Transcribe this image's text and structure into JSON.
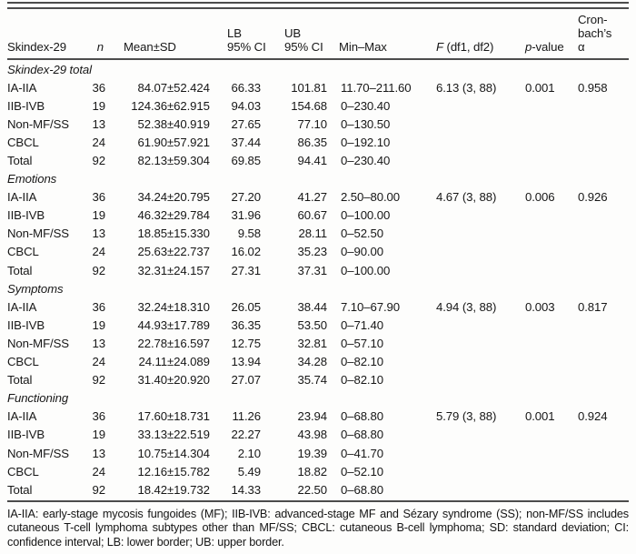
{
  "table": {
    "header": {
      "skindex": "Skindex-29",
      "n": "n",
      "mean_sd": "Mean±SD",
      "lb": "LB\n95% CI",
      "ub": "UB\n95% CI",
      "min_max": "Min–Max",
      "f_italic": "F",
      "f_rest": " (df1, df2)",
      "p_italic": "p",
      "p_rest": "-value",
      "cronbach": "Cron-\nbach’s\nα"
    },
    "sections": [
      {
        "title": "Skindex-29 total",
        "rows": [
          {
            "label": "IA-IIA",
            "n": "36",
            "mean_sd": "84.07±52.424",
            "lb": "66.33",
            "ub": "101.81",
            "min_max": "11.70–211.60",
            "f": "6.13 (3, 88)",
            "p": "0.001",
            "alpha": "0.958"
          },
          {
            "label": "IIB-IVB",
            "n": "19",
            "mean_sd": "124.36±62.915",
            "lb": "94.03",
            "ub": "154.68",
            "min_max": "0–230.40",
            "f": "",
            "p": "",
            "alpha": ""
          },
          {
            "label": "Non-MF/SS",
            "n": "13",
            "mean_sd": "52.38±40.919",
            "lb": "27.65",
            "ub": "77.10",
            "min_max": "0–130.50",
            "f": "",
            "p": "",
            "alpha": ""
          },
          {
            "label": "CBCL",
            "n": "24",
            "mean_sd": "61.90±57.921",
            "lb": "37.44",
            "ub": "86.35",
            "min_max": "0–192.10",
            "f": "",
            "p": "",
            "alpha": ""
          },
          {
            "label": "Total",
            "n": "92",
            "mean_sd": "82.13±59.304",
            "lb": "69.85",
            "ub": "94.41",
            "min_max": "0–230.40",
            "f": "",
            "p": "",
            "alpha": ""
          }
        ]
      },
      {
        "title": "Emotions",
        "rows": [
          {
            "label": "IA-IIA",
            "n": "36",
            "mean_sd": "34.24±20.795",
            "lb": "27.20",
            "ub": "41.27",
            "min_max": "2.50–80.00",
            "f": "4.67 (3, 88)",
            "p": "0.006",
            "alpha": "0.926"
          },
          {
            "label": "IIB-IVB",
            "n": "19",
            "mean_sd": "46.32±29.784",
            "lb": "31.96",
            "ub": "60.67",
            "min_max": "0–100.00",
            "f": "",
            "p": "",
            "alpha": ""
          },
          {
            "label": "Non-MF/SS",
            "n": "13",
            "mean_sd": "18.85±15.330",
            "lb": "9.58",
            "ub": "28.11",
            "min_max": "0–52.50",
            "f": "",
            "p": "",
            "alpha": ""
          },
          {
            "label": "CBCL",
            "n": "24",
            "mean_sd": "25.63±22.737",
            "lb": "16.02",
            "ub": "35.23",
            "min_max": "0–90.00",
            "f": "",
            "p": "",
            "alpha": ""
          },
          {
            "label": "Total",
            "n": "92",
            "mean_sd": "32.31±24.157",
            "lb": "27.31",
            "ub": "37.31",
            "min_max": "0–100.00",
            "f": "",
            "p": "",
            "alpha": ""
          }
        ]
      },
      {
        "title": "Symptoms",
        "rows": [
          {
            "label": "IA-IIA",
            "n": "36",
            "mean_sd": "32.24±18.310",
            "lb": "26.05",
            "ub": "38.44",
            "min_max": "7.10–67.90",
            "f": "4.94 (3, 88)",
            "p": "0.003",
            "alpha": "0.817"
          },
          {
            "label": "IIB-IVB",
            "n": "19",
            "mean_sd": "44.93±17.789",
            "lb": "36.35",
            "ub": "53.50",
            "min_max": "0–71.40",
            "f": "",
            "p": "",
            "alpha": ""
          },
          {
            "label": "Non-MF/SS",
            "n": "13",
            "mean_sd": "22.78±16.597",
            "lb": "12.75",
            "ub": "32.81",
            "min_max": "0–57.10",
            "f": "",
            "p": "",
            "alpha": ""
          },
          {
            "label": "CBCL",
            "n": "24",
            "mean_sd": "24.11±24.089",
            "lb": "13.94",
            "ub": "34.28",
            "min_max": "0–82.10",
            "f": "",
            "p": "",
            "alpha": ""
          },
          {
            "label": "Total",
            "n": "92",
            "mean_sd": "31.40±20.920",
            "lb": "27.07",
            "ub": "35.74",
            "min_max": "0–82.10",
            "f": "",
            "p": "",
            "alpha": ""
          }
        ]
      },
      {
        "title": "Functioning",
        "rows": [
          {
            "label": "IA-IIA",
            "n": "36",
            "mean_sd": "17.60±18.731",
            "lb": "11.26",
            "ub": "23.94",
            "min_max": "0–68.80",
            "f": "5.79 (3, 88)",
            "p": "0.001",
            "alpha": "0.924"
          },
          {
            "label": "IIB-IVB",
            "n": "19",
            "mean_sd": "33.13±22.519",
            "lb": "22.27",
            "ub": "43.98",
            "min_max": "0–68.80",
            "f": "",
            "p": "",
            "alpha": ""
          },
          {
            "label": "Non-MF/SS",
            "n": "13",
            "mean_sd": "10.75±14.304",
            "lb": "2.10",
            "ub": "19.39",
            "min_max": "0–41.70",
            "f": "",
            "p": "",
            "alpha": ""
          },
          {
            "label": "CBCL",
            "n": "24",
            "mean_sd": "12.16±15.782",
            "lb": "5.49",
            "ub": "18.82",
            "min_max": "0–52.10",
            "f": "",
            "p": "",
            "alpha": ""
          },
          {
            "label": "Total",
            "n": "92",
            "mean_sd": "18.42±19.732",
            "lb": "14.33",
            "ub": "22.50",
            "min_max": "0–68.80",
            "f": "",
            "p": "",
            "alpha": ""
          }
        ]
      }
    ],
    "footnote": "IA-IIA: early-stage mycosis fungoides (MF); IIB-IVB: advanced-stage MF and Sézary syndrome (SS); non-MF/SS includes cutaneous T-cell lymphoma subtypes other than MF/SS; CBCL: cutaneous B-cell lymphoma; SD: standard deviation; CI: confidence interval; LB: lower border; UB: upper border."
  },
  "colors": {
    "text": "#171717",
    "rule": "#4c4c4c",
    "background": "#fdfdfc"
  }
}
